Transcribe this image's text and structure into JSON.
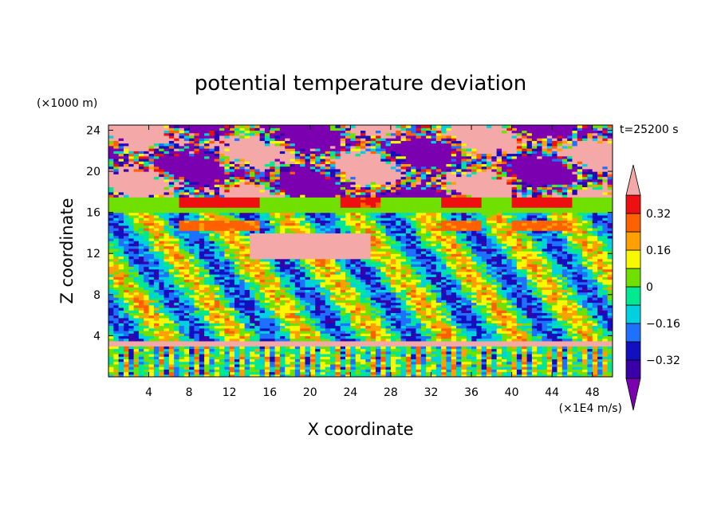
{
  "chart_data": {
    "type": "heatmap",
    "title": "potential temperature deviation",
    "xlabel": "X coordinate",
    "ylabel": "Z coordinate",
    "x_unit": "(×1E4 m/s)",
    "y_unit": "(×1000 m)",
    "time_label": "t=25200 s",
    "xlim": [
      0,
      50
    ],
    "ylim": [
      0,
      24.5
    ],
    "x_ticks": [
      4,
      8,
      12,
      16,
      20,
      24,
      28,
      32,
      36,
      40,
      44,
      48
    ],
    "y_ticks": [
      4,
      8,
      12,
      16,
      20,
      24
    ],
    "colorbar": {
      "levels": [
        -0.4,
        -0.32,
        -0.24,
        -0.16,
        -0.08,
        0,
        0.08,
        0.16,
        0.24,
        0.32,
        0.4
      ],
      "colors": [
        "#7a00b0",
        "#3a00a8",
        "#1010c0",
        "#1e70ff",
        "#00d0e0",
        "#00e890",
        "#70e000",
        "#f8f800",
        "#ffa000",
        "#ff6000",
        "#ee1010",
        "#f4a8a8"
      ],
      "tick_labels": [
        {
          "value": 0.32,
          "label": "0.32"
        },
        {
          "value": 0.16,
          "label": "0.16"
        },
        {
          "value": 0,
          "label": "0"
        },
        {
          "value": -0.16,
          "label": "−0.16"
        },
        {
          "value": -0.32,
          "label": "−0.32"
        }
      ],
      "extend": "both"
    },
    "field_regions": [
      {
        "x": [
          0,
          50
        ],
        "z": [
          0,
          3
        ],
        "value_range": [
          -0.32,
          0.32
        ],
        "pattern": "vertical streaks"
      },
      {
        "x": [
          0,
          50
        ],
        "z": [
          3,
          3.6
        ],
        "value": 0.45
      },
      {
        "x": [
          0,
          50
        ],
        "z": [
          3.6,
          16
        ],
        "value_range": [
          -0.4,
          0.32
        ],
        "pattern": "turbulent mix"
      },
      {
        "x": [
          0,
          50
        ],
        "z": [
          17.5,
          24.5
        ],
        "value_range": [
          -0.45,
          0.45
        ],
        "pattern": "pink and purple patches"
      },
      {
        "x": [
          7,
          15
        ],
        "z": [
          16.5,
          17.5
        ],
        "value": 0.35
      },
      {
        "x": [
          7,
          15
        ],
        "z": [
          14.2,
          15.2
        ],
        "value": 0.26
      },
      {
        "x": [
          23,
          27
        ],
        "z": [
          16.5,
          17.5
        ],
        "value": 0.33
      },
      {
        "x": [
          33,
          37
        ],
        "z": [
          16.5,
          17.5
        ],
        "value": 0.35
      },
      {
        "x": [
          33,
          37
        ],
        "z": [
          14.2,
          15.2
        ],
        "value": 0.26
      },
      {
        "x": [
          40,
          46
        ],
        "z": [
          16.5,
          17.5
        ],
        "value": 0.35
      },
      {
        "x": [
          40,
          46
        ],
        "z": [
          14.2,
          15.2
        ],
        "value": 0.26
      },
      {
        "x": [
          14,
          26
        ],
        "z": [
          11.5,
          14
        ],
        "value": 0.45
      }
    ]
  }
}
